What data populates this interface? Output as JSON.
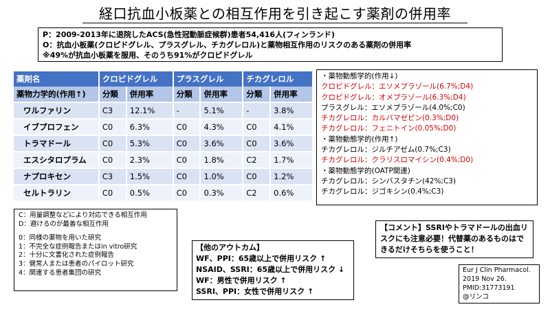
{
  "title": "経口抗血小板薬との相互作用を引き起こす薬剤の併用率",
  "pico": [
    "P：2009-2013年に退院したACS(急性冠動脈症候群)患者54,416人(フィンランド)",
    "O：抗血小板薬(クロピドグレル、プラスグレル、チカグレロル)と薬物相互作用のリスクのある薬剤の併用率",
    "※49%が抗血小板薬を服用、そのうち91%がクロピドグレル"
  ],
  "table": {
    "header1": [
      "薬剤名",
      "クロピドグレル",
      "",
      "プラスグレル",
      "",
      "チカグレロル",
      ""
    ],
    "header2": [
      "薬物力学的(作用↑)",
      "分類",
      "併用率",
      "分類",
      "併用率",
      "分類",
      "併用率"
    ],
    "rows": [
      [
        "ワルファリン",
        "C3",
        "12.1%",
        "-",
        "5.1%",
        "-",
        "3.8%"
      ],
      [
        "イブプロフェン",
        "C0",
        "6.3%",
        "C0",
        "4.3%",
        "C0",
        "4.1%"
      ],
      [
        "トラマドール",
        "C0",
        "5.3%",
        "C0",
        "3.6%",
        "C0",
        "3.6%"
      ],
      [
        "エスシタロプラム",
        "C0",
        "2.3%",
        "C0",
        "1.8%",
        "C2",
        "1.7%"
      ],
      [
        "ナプロキセン",
        "C3",
        "1.5%",
        "C0",
        "1.0%",
        "C0",
        "1.2%"
      ],
      [
        "セルトラリン",
        "C0",
        "0.5%",
        "C0",
        "0.3%",
        "C2",
        "0.6%"
      ]
    ]
  },
  "pk": [
    {
      "text": "・薬物動態学的(作用↓)",
      "red": false
    },
    {
      "text": "クロピドグレル：エソメプラゾール(6.7%;D4)",
      "red": true
    },
    {
      "text": "クロピドグレル：オメプラゾール(6.3%;D4)",
      "red": true
    },
    {
      "text": "プラスグレル：エソメプラゾール(4.0%;C0)",
      "red": false
    },
    {
      "text": "チカグレロル：カルバマゼピン(0.3%;D0)",
      "red": true
    },
    {
      "text": "チカグレロル：フェニトイン(0.05%;D0)",
      "red": true
    },
    {
      "text": "・薬物動態学的(作用↑)",
      "red": false
    },
    {
      "text": "チカグレロル：ジルチアゼム(0.7%;C3)",
      "red": false
    },
    {
      "text": "チカグレロル：クラリスロマイシン(0.4%;D0)",
      "red": true
    },
    {
      "text": "・薬物動態学的(OATP関連)",
      "red": false
    },
    {
      "text": "チカグレロル：シンバスタチン(42%;C3)",
      "red": false
    },
    {
      "text": "チカグレロル：ジゴキシン(0.4%;C3)",
      "red": false
    }
  ],
  "legend": {
    "class_lines": [
      "C：用量調整などにより対応できる相互作用",
      "D：避けるのが最善な相互作用"
    ],
    "evidence_lines": [
      "0：同様の薬物を用いた研究",
      "1：不完全な症例報告またはin vitro研究",
      "2：十分に文書化された症例報告",
      "3：健常人または患者のパイロット研究",
      "4：関連する患者集団の研究"
    ]
  },
  "outcome": [
    "【他のアウトカム】",
    "WF、PPI：65歳以上で併用リスク ↑",
    "NSAID、SSRI：65歳以上で併用リスク ↓",
    "WF：男性で併用リスク ↑",
    "SSRI、PPI：女性で併用リスク ↑"
  ],
  "comment": "【コメント】SSRIやトラマドールの出血リスクにも注意必要！代替薬のあるものはできるだけそちらを使うこと！",
  "citation": [
    "Eur J Clin Pharmacol.",
    "2019 Nov 26.",
    "PMID:31773191",
    "@リンコ"
  ]
}
